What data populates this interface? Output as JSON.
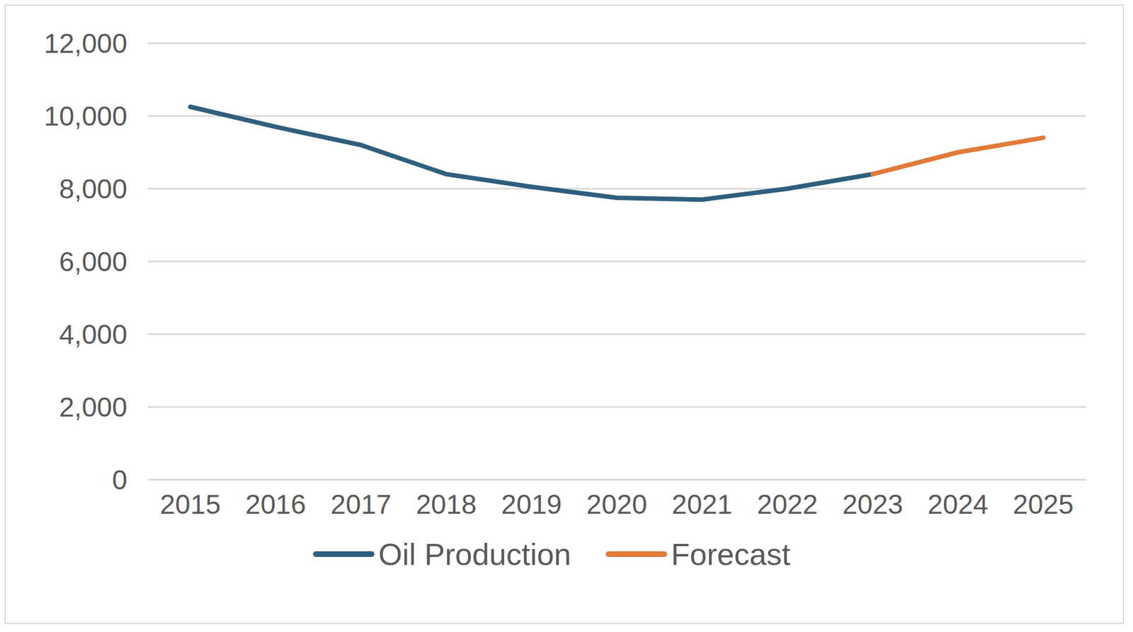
{
  "chart_data": {
    "type": "line",
    "categories": [
      "2015",
      "2016",
      "2017",
      "2018",
      "2019",
      "2020",
      "2021",
      "2022",
      "2023",
      "2024",
      "2025"
    ],
    "series": [
      {
        "name": "Oil Production",
        "color": "#2f5f7e",
        "values": [
          10250,
          9700,
          9200,
          8400,
          8050,
          7750,
          7700,
          8000,
          8400,
          null,
          null
        ]
      },
      {
        "name": "Forecast",
        "color": "#e07b39",
        "values": [
          null,
          null,
          null,
          null,
          null,
          null,
          null,
          null,
          8400,
          9000,
          9400
        ]
      }
    ],
    "ylim": [
      0,
      12000
    ],
    "yticks": [
      0,
      {
        "value": 2000,
        "label": "2,000"
      },
      {
        "value": 4000,
        "label": "4,000"
      },
      {
        "value": 6000,
        "label": "6,000"
      },
      {
        "value": 8000,
        "label": "8,000"
      },
      {
        "value": 10000,
        "label": "10,000"
      },
      {
        "value": 12000,
        "label": "12,000"
      }
    ],
    "grid": true,
    "legend": "bottom"
  }
}
